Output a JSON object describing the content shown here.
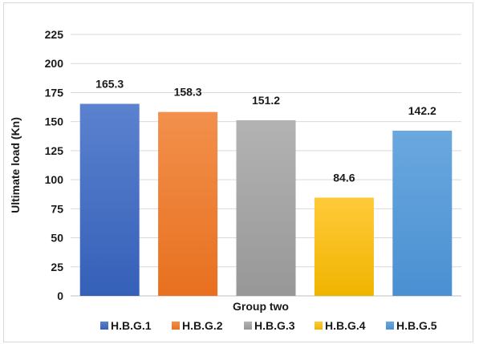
{
  "chart_data": {
    "type": "bar",
    "categories": [
      "H.B.G.1",
      "H.B.G.2",
      "H.B.G.3",
      "H.B.G.4",
      "H.B.G.5"
    ],
    "values": [
      165.3,
      158.3,
      151.2,
      84.6,
      142.2
    ],
    "data_labels": [
      "165.3",
      "158.3",
      "151.2",
      "84.6",
      "142.2"
    ],
    "xlabel": "Group two",
    "ylabel": "Ultimate load (Kn)",
    "ylim": [
      0,
      225
    ],
    "yticks": [
      0,
      25,
      50,
      75,
      100,
      125,
      150,
      175,
      200,
      225
    ],
    "grid": true,
    "legend": {
      "placement": "bottom",
      "entries": [
        "H.B.G.1",
        "H.B.G.2",
        "H.B.G.3",
        "H.B.G.4",
        "H.B.G.5"
      ]
    },
    "colors": [
      {
        "top": "#5b82cf",
        "bottom": "#3560b8"
      },
      {
        "top": "#f2904c",
        "bottom": "#e8701f"
      },
      {
        "top": "#b3b3b3",
        "bottom": "#979797"
      },
      {
        "top": "#ffca3a",
        "bottom": "#f0b400"
      },
      {
        "top": "#6aa8df",
        "bottom": "#4a90d2"
      }
    ],
    "gridline_color": "#d9d9d9"
  }
}
